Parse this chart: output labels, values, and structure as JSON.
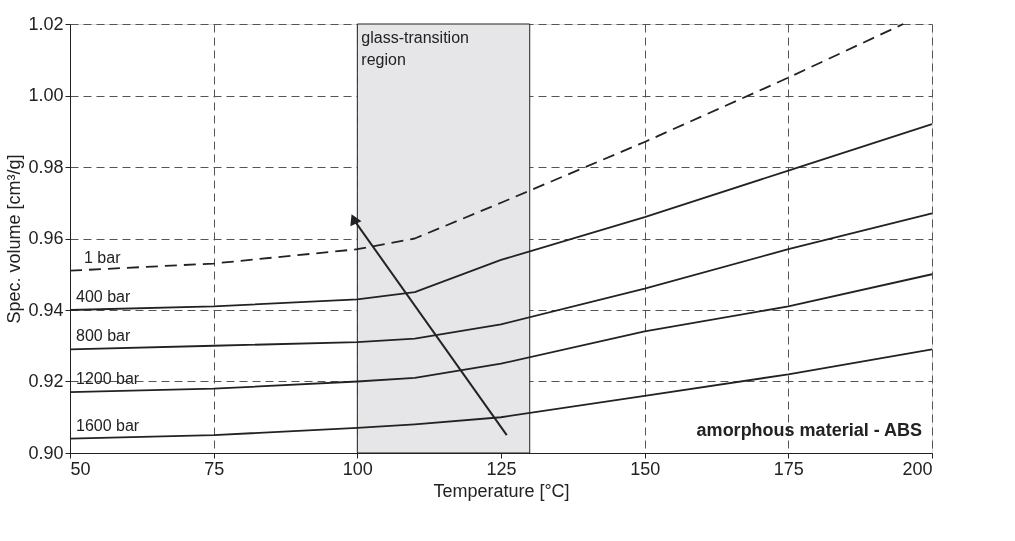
{
  "chart_data": {
    "type": "line",
    "xlabel": "Temperature [°C]",
    "ylabel": "Spec. volume  [cm³/g]",
    "x": [
      50,
      75,
      100,
      110,
      125,
      150,
      175,
      200
    ],
    "series": [
      {
        "name": "1 bar",
        "color": "#222222",
        "line_style": "dashed",
        "x": [
          50,
          75,
          100,
          110,
          125,
          150,
          175,
          195
        ],
        "values": [
          0.951,
          0.953,
          0.957,
          0.96,
          0.97,
          0.987,
          1.005,
          1.02
        ]
      },
      {
        "name": "400 bar",
        "color": "#222222",
        "values": [
          0.94,
          0.941,
          0.943,
          0.945,
          0.954,
          0.966,
          0.979,
          0.992
        ]
      },
      {
        "name": "800 bar",
        "color": "#222222",
        "values": [
          0.929,
          0.93,
          0.931,
          0.932,
          0.936,
          0.946,
          0.957,
          0.967
        ]
      },
      {
        "name": "1200 bar",
        "color": "#222222",
        "values": [
          0.917,
          0.918,
          0.92,
          0.921,
          0.925,
          0.934,
          0.941,
          0.95
        ]
      },
      {
        "name": "1600 bar",
        "color": "#222222",
        "values": [
          0.904,
          0.905,
          0.907,
          0.908,
          0.91,
          0.916,
          0.922,
          0.929
        ]
      }
    ],
    "xlim": [
      50,
      200
    ],
    "xticks": [
      50,
      75,
      100,
      125,
      150,
      175,
      200
    ],
    "ylim": [
      0.9,
      1.02
    ],
    "yticks": [
      {
        "value": 0.9,
        "label": "0.90"
      },
      {
        "value": 0.92,
        "label": "0.92"
      },
      {
        "value": 0.94,
        "label": "0.94"
      },
      {
        "value": 0.96,
        "label": "0.96"
      },
      {
        "value": 0.98,
        "label": "0.98"
      },
      {
        "value": 1.0,
        "label": "1.00"
      },
      {
        "value": 1.02,
        "label": "1.02"
      }
    ],
    "bands": [
      {
        "axis": "x",
        "from": 100,
        "to": 130,
        "label": "glass-transition region",
        "color": "#e6e6e8"
      }
    ],
    "annotations": [
      "amorphous material - ABS"
    ],
    "grid": true,
    "marker": "none"
  }
}
